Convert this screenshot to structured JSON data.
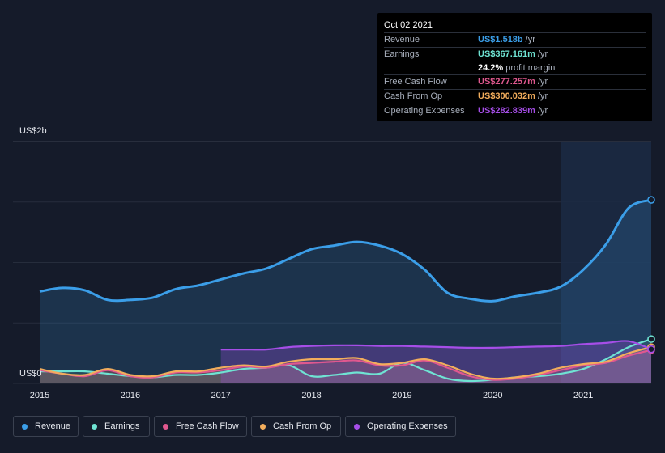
{
  "tooltip": {
    "date": "Oct 02 2021",
    "rows": [
      {
        "label": "Revenue",
        "value": "US$1.518b",
        "unit": "/yr",
        "color": "#3b9ee8"
      },
      {
        "label": "Earnings",
        "value": "US$367.161m",
        "unit": "/yr",
        "color": "#6fe3d3"
      },
      {
        "label": "",
        "value": "24.2%",
        "unit": "profit margin",
        "color": "#ffffff"
      },
      {
        "label": "Free Cash Flow",
        "value": "US$277.257m",
        "unit": "/yr",
        "color": "#e0588f"
      },
      {
        "label": "Cash From Op",
        "value": "US$300.032m",
        "unit": "/yr",
        "color": "#f2ad5c"
      },
      {
        "label": "Operating Expenses",
        "value": "US$282.839m",
        "unit": "/yr",
        "color": "#a64ee8"
      }
    ]
  },
  "legend": [
    {
      "label": "Revenue",
      "color": "#3b9ee8"
    },
    {
      "label": "Earnings",
      "color": "#6fe3d3"
    },
    {
      "label": "Free Cash Flow",
      "color": "#e0588f"
    },
    {
      "label": "Cash From Op",
      "color": "#f2ad5c"
    },
    {
      "label": "Operating Expenses",
      "color": "#a64ee8"
    }
  ],
  "chart_data": {
    "type": "area",
    "y_top_label": "US$2b",
    "y_bottom_label": "US$0",
    "ylim": [
      0,
      2000
    ],
    "unit": "US$ millions /yr",
    "x_ticks": [
      "2015",
      "2016",
      "2017",
      "2018",
      "2019",
      "2020",
      "2021"
    ],
    "xlim": [
      2015.0,
      2021.75
    ],
    "highlight_from": 2020.75,
    "series": [
      {
        "name": "Revenue",
        "color": "#3b9ee8",
        "points": [
          [
            2015.0,
            760
          ],
          [
            2015.25,
            790
          ],
          [
            2015.5,
            770
          ],
          [
            2015.75,
            690
          ],
          [
            2016.0,
            690
          ],
          [
            2016.25,
            710
          ],
          [
            2016.5,
            780
          ],
          [
            2016.75,
            810
          ],
          [
            2017.0,
            860
          ],
          [
            2017.25,
            910
          ],
          [
            2017.5,
            950
          ],
          [
            2017.75,
            1030
          ],
          [
            2018.0,
            1110
          ],
          [
            2018.25,
            1140
          ],
          [
            2018.5,
            1170
          ],
          [
            2018.75,
            1140
          ],
          [
            2019.0,
            1070
          ],
          [
            2019.25,
            940
          ],
          [
            2019.5,
            750
          ],
          [
            2019.75,
            700
          ],
          [
            2020.0,
            680
          ],
          [
            2020.25,
            720
          ],
          [
            2020.5,
            750
          ],
          [
            2020.75,
            800
          ],
          [
            2021.0,
            940
          ],
          [
            2021.25,
            1150
          ],
          [
            2021.5,
            1450
          ],
          [
            2021.75,
            1518
          ]
        ]
      },
      {
        "name": "Earnings",
        "color": "#6fe3d3",
        "points": [
          [
            2015.0,
            100
          ],
          [
            2015.25,
            100
          ],
          [
            2015.5,
            100
          ],
          [
            2015.75,
            80
          ],
          [
            2016.0,
            60
          ],
          [
            2016.25,
            50
          ],
          [
            2016.5,
            70
          ],
          [
            2016.75,
            70
          ],
          [
            2017.0,
            90
          ],
          [
            2017.25,
            120
          ],
          [
            2017.5,
            130
          ],
          [
            2017.75,
            150
          ],
          [
            2018.0,
            60
          ],
          [
            2018.25,
            70
          ],
          [
            2018.5,
            90
          ],
          [
            2018.75,
            80
          ],
          [
            2019.0,
            170
          ],
          [
            2019.25,
            110
          ],
          [
            2019.5,
            40
          ],
          [
            2019.75,
            20
          ],
          [
            2020.0,
            30
          ],
          [
            2020.25,
            50
          ],
          [
            2020.5,
            60
          ],
          [
            2020.75,
            80
          ],
          [
            2021.0,
            120
          ],
          [
            2021.25,
            200
          ],
          [
            2021.5,
            300
          ],
          [
            2021.75,
            367
          ]
        ]
      },
      {
        "name": "Free Cash Flow",
        "color": "#e0588f",
        "points": [
          [
            2015.0,
            110
          ],
          [
            2015.25,
            80
          ],
          [
            2015.5,
            60
          ],
          [
            2015.75,
            110
          ],
          [
            2016.0,
            60
          ],
          [
            2016.25,
            50
          ],
          [
            2016.5,
            90
          ],
          [
            2016.75,
            90
          ],
          [
            2017.0,
            110
          ],
          [
            2017.25,
            140
          ],
          [
            2017.5,
            130
          ],
          [
            2017.75,
            160
          ],
          [
            2018.0,
            170
          ],
          [
            2018.25,
            180
          ],
          [
            2018.5,
            190
          ],
          [
            2018.75,
            150
          ],
          [
            2019.0,
            150
          ],
          [
            2019.25,
            190
          ],
          [
            2019.5,
            130
          ],
          [
            2019.75,
            60
          ],
          [
            2020.0,
            30
          ],
          [
            2020.25,
            40
          ],
          [
            2020.5,
            70
          ],
          [
            2020.75,
            110
          ],
          [
            2021.0,
            150
          ],
          [
            2021.25,
            170
          ],
          [
            2021.5,
            230
          ],
          [
            2021.75,
            277
          ]
        ]
      },
      {
        "name": "Cash From Op",
        "color": "#f2ad5c",
        "points": [
          [
            2015.0,
            120
          ],
          [
            2015.25,
            80
          ],
          [
            2015.5,
            70
          ],
          [
            2015.75,
            120
          ],
          [
            2016.0,
            70
          ],
          [
            2016.25,
            60
          ],
          [
            2016.5,
            100
          ],
          [
            2016.75,
            100
          ],
          [
            2017.0,
            130
          ],
          [
            2017.25,
            150
          ],
          [
            2017.5,
            140
          ],
          [
            2017.75,
            180
          ],
          [
            2018.0,
            200
          ],
          [
            2018.25,
            200
          ],
          [
            2018.5,
            210
          ],
          [
            2018.75,
            160
          ],
          [
            2019.0,
            170
          ],
          [
            2019.25,
            200
          ],
          [
            2019.5,
            150
          ],
          [
            2019.75,
            80
          ],
          [
            2020.0,
            40
          ],
          [
            2020.25,
            50
          ],
          [
            2020.5,
            80
          ],
          [
            2020.75,
            130
          ],
          [
            2021.0,
            160
          ],
          [
            2021.25,
            180
          ],
          [
            2021.5,
            250
          ],
          [
            2021.75,
            300
          ]
        ]
      },
      {
        "name": "Operating Expenses",
        "color": "#a64ee8",
        "points": [
          [
            2017.0,
            280
          ],
          [
            2017.25,
            280
          ],
          [
            2017.5,
            280
          ],
          [
            2017.75,
            300
          ],
          [
            2018.0,
            310
          ],
          [
            2018.25,
            315
          ],
          [
            2018.5,
            315
          ],
          [
            2018.75,
            310
          ],
          [
            2019.0,
            310
          ],
          [
            2019.25,
            305
          ],
          [
            2019.5,
            300
          ],
          [
            2019.75,
            295
          ],
          [
            2020.0,
            295
          ],
          [
            2020.25,
            300
          ],
          [
            2020.5,
            305
          ],
          [
            2020.75,
            310
          ],
          [
            2021.0,
            325
          ],
          [
            2021.25,
            335
          ],
          [
            2021.5,
            350
          ],
          [
            2021.75,
            283
          ]
        ]
      }
    ]
  }
}
